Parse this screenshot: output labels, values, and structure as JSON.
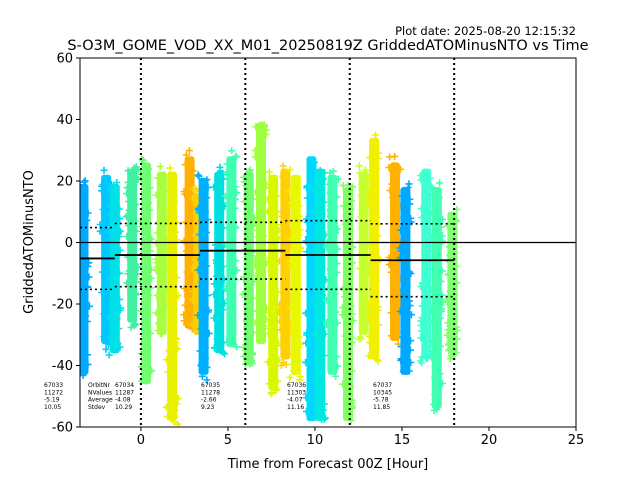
{
  "figure": {
    "plot_date": "Plot date: 2025-08-20 12:15:32",
    "title": "S-O3M_GOME_VOD_XX_M01_20250819Z GriddedATOMinusNTO vs Time"
  },
  "chart_data": {
    "type": "scatter",
    "xlabel": "Time from Forecast 00Z [Hour]",
    "ylabel": "GriddedATOMinusNTO",
    "xlim": [
      -3.5,
      25
    ],
    "ylim": [
      -60,
      60
    ],
    "xticks": [
      0,
      5,
      10,
      15,
      20,
      25
    ],
    "yticks": [
      -60,
      -40,
      -20,
      0,
      20,
      40,
      60
    ],
    "grid": false,
    "zero_line": 0,
    "vertical_dotted_lines": [
      0,
      6,
      12,
      18
    ],
    "marker": "+",
    "orbits": [
      {
        "orbit": "67033",
        "nvalues": "11272",
        "average": "-5.19",
        "stdev": "10.05",
        "x_start": -3.5,
        "x_end": -1.5,
        "mean": -5.19,
        "std": 10.05
      },
      {
        "orbit": "67034",
        "nvalues": "11287",
        "average": "-4.08",
        "stdev": "10.29",
        "x_start": -1.5,
        "x_end": 3.4,
        "mean": -4.08,
        "std": 10.29
      },
      {
        "orbit": "67035",
        "nvalues": "11278",
        "average": "-2.66",
        "stdev": "9.23",
        "x_start": 3.4,
        "x_end": 8.3,
        "mean": -2.66,
        "std": 9.23
      },
      {
        "orbit": "67036",
        "nvalues": "11303",
        "average": "-4.07",
        "stdev": "11.16",
        "x_start": 8.3,
        "x_end": 13.2,
        "mean": -4.07,
        "std": 11.16
      },
      {
        "orbit": "67037",
        "nvalues": "10345",
        "average": "-5.78",
        "stdev": "11.85",
        "x_start": 13.2,
        "x_end": 18.0,
        "mean": -5.78,
        "std": 11.85
      }
    ],
    "stats_header": [
      "OrbitNr",
      "NValues",
      "Average",
      "Stdev"
    ],
    "point_bands": [
      {
        "x": -3.3,
        "lo": -45,
        "hi": 21,
        "color": "#00a8ff"
      },
      {
        "x": -2.0,
        "lo": -35,
        "hi": 24,
        "color": "#00c8ff"
      },
      {
        "x": -1.5,
        "lo": -38,
        "hi": 21,
        "color": "#00e0e8"
      },
      {
        "x": -0.5,
        "lo": -28,
        "hi": 26,
        "color": "#40f0a0"
      },
      {
        "x": 0.3,
        "lo": -48,
        "hi": 28,
        "color": "#70ff70"
      },
      {
        "x": 1.2,
        "lo": -32,
        "hi": 25,
        "color": "#a8ff40"
      },
      {
        "x": 1.8,
        "lo": -60,
        "hi": 25,
        "color": "#e8f000"
      },
      {
        "x": 2.8,
        "lo": -30,
        "hi": 30,
        "color": "#ffb000"
      },
      {
        "x": 3.3,
        "lo": -32,
        "hi": 18,
        "color": "#ffd000"
      },
      {
        "x": 3.6,
        "lo": -45,
        "hi": 23,
        "color": "#00b0ff"
      },
      {
        "x": 4.5,
        "lo": -38,
        "hi": 25,
        "color": "#00e0e0"
      },
      {
        "x": 5.2,
        "lo": -36,
        "hi": 30,
        "color": "#40ffb0"
      },
      {
        "x": 6.2,
        "lo": -42,
        "hi": 25,
        "color": "#70ff70"
      },
      {
        "x": 6.9,
        "lo": -35,
        "hi": 41,
        "color": "#a0ff40"
      },
      {
        "x": 7.6,
        "lo": -50,
        "hi": 24,
        "color": "#d8f800"
      },
      {
        "x": 8.3,
        "lo": -40,
        "hi": 26,
        "color": "#ffd000"
      },
      {
        "x": 8.9,
        "lo": -45,
        "hi": 24,
        "color": "#e8f800"
      },
      {
        "x": 9.8,
        "lo": -60,
        "hi": 30,
        "color": "#00d8ff"
      },
      {
        "x": 10.3,
        "lo": -60,
        "hi": 26,
        "color": "#00e8e0"
      },
      {
        "x": 11.0,
        "lo": -45,
        "hi": 24,
        "color": "#40ffb0"
      },
      {
        "x": 11.9,
        "lo": -60,
        "hi": 20,
        "color": "#80ff60"
      },
      {
        "x": 12.8,
        "lo": -32,
        "hi": 25,
        "color": "#c8ff30"
      },
      {
        "x": 13.4,
        "lo": -40,
        "hi": 36,
        "color": "#f0f000"
      },
      {
        "x": 14.6,
        "lo": -34,
        "hi": 28,
        "color": "#ffb000"
      },
      {
        "x": 15.2,
        "lo": -45,
        "hi": 20,
        "color": "#00a8ff"
      },
      {
        "x": 16.4,
        "lo": -40,
        "hi": 26,
        "color": "#40ffd0"
      },
      {
        "x": 17.0,
        "lo": -56,
        "hi": 20,
        "color": "#40ffb0"
      },
      {
        "x": 17.9,
        "lo": -38,
        "hi": 12,
        "color": "#80ff70"
      }
    ]
  }
}
